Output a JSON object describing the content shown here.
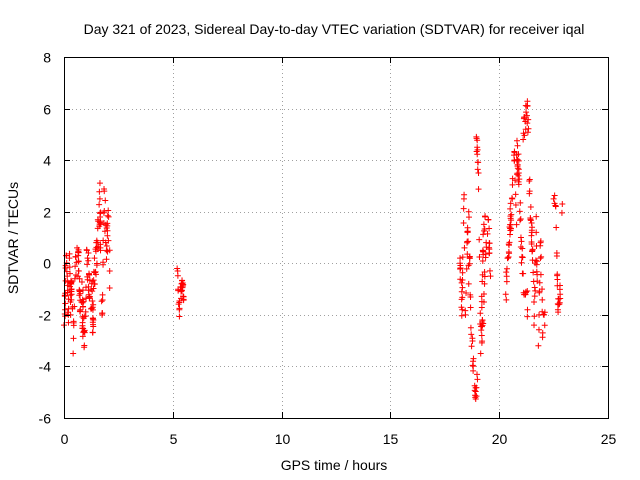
{
  "chart_data": {
    "type": "scatter",
    "title": "Day 321 of 2023, Sidereal Day-to-day VTEC variation (SDTVAR) for receiver iqal",
    "xlabel": "GPS time / hours",
    "ylabel": "SDTVAR / TECUs",
    "xlim": [
      0,
      25
    ],
    "ylim": [
      -6,
      8
    ],
    "xticks": [
      "0",
      "5",
      "10",
      "15",
      "20",
      "25"
    ],
    "yticks": [
      "-6",
      "-4",
      "-2",
      "0",
      "2",
      "4",
      "6",
      "8"
    ],
    "grid": true,
    "marker": "+",
    "color": "#ff0000",
    "clusters": [
      {
        "range": [
          0.0,
          0.35
        ],
        "trace": [
          [
            0.0,
            -2.4
          ],
          [
            0.05,
            -1.8
          ],
          [
            0.1,
            0.3
          ],
          [
            0.15,
            -0.5
          ],
          [
            0.2,
            -2.0
          ],
          [
            0.25,
            0.2
          ],
          [
            0.3,
            -1.5
          ],
          [
            0.35,
            -1.0
          ]
        ],
        "spread": 0.7,
        "count": 35
      },
      {
        "range": [
          0.35,
          0.75
        ],
        "trace": [
          [
            0.35,
            -1.2
          ],
          [
            0.42,
            -3.5
          ],
          [
            0.5,
            -0.6
          ],
          [
            0.6,
            0.6
          ],
          [
            0.68,
            -0.3
          ],
          [
            0.75,
            -1.8
          ]
        ],
        "spread": 0.7,
        "count": 30
      },
      {
        "range": [
          0.8,
          1.4
        ],
        "trace": [
          [
            0.8,
            -1.5
          ],
          [
            0.95,
            -2.6
          ],
          [
            1.05,
            0.5
          ],
          [
            1.15,
            -0.4
          ],
          [
            1.25,
            -1.0
          ],
          [
            1.35,
            -2.2
          ],
          [
            1.4,
            0.2
          ]
        ],
        "spread": 1.0,
        "count": 60
      },
      {
        "range": [
          1.4,
          2.1
        ],
        "trace": [
          [
            1.4,
            -0.8
          ],
          [
            1.55,
            0.8
          ],
          [
            1.65,
            2.5
          ],
          [
            1.75,
            -2.0
          ],
          [
            1.85,
            2.8
          ],
          [
            1.95,
            0.5
          ],
          [
            2.05,
            1.8
          ],
          [
            2.1,
            -0.3
          ]
        ],
        "spread": 0.9,
        "count": 60
      },
      {
        "range": [
          5.2,
          5.5
        ],
        "trace": [
          [
            5.2,
            -0.2
          ],
          [
            5.3,
            -1.8
          ],
          [
            5.4,
            -0.8
          ],
          [
            5.5,
            -1.3
          ]
        ],
        "spread": 0.35,
        "count": 25
      },
      {
        "range": [
          18.2,
          18.6
        ],
        "trace": [
          [
            18.2,
            0.0
          ],
          [
            18.3,
            -1.8
          ],
          [
            18.38,
            2.5
          ],
          [
            18.45,
            -2.0
          ],
          [
            18.55,
            1.2
          ],
          [
            18.6,
            -0.8
          ]
        ],
        "spread": 0.6,
        "count": 30
      },
      {
        "range": [
          18.6,
          19.0
        ],
        "trace": [
          [
            18.6,
            2.0
          ],
          [
            18.7,
            -2.5
          ],
          [
            18.8,
            -3.8
          ],
          [
            18.9,
            -5.2
          ],
          [
            19.0,
            -4.5
          ]
        ],
        "spread": 0.5,
        "count": 25
      },
      {
        "range": [
          18.95,
          19.35
        ],
        "trace": [
          [
            18.95,
            4.9
          ],
          [
            19.05,
            3.5
          ],
          [
            19.15,
            -3.5
          ],
          [
            19.25,
            0.5
          ],
          [
            19.35,
            1.8
          ]
        ],
        "spread": 0.6,
        "count": 30
      },
      {
        "range": [
          19.2,
          19.6
        ],
        "trace": [
          [
            19.2,
            -2.8
          ],
          [
            19.3,
            -1.5
          ],
          [
            19.4,
            0.8
          ],
          [
            19.5,
            1.7
          ],
          [
            19.6,
            -0.5
          ]
        ],
        "spread": 0.5,
        "count": 25
      },
      {
        "range": [
          20.3,
          20.8
        ],
        "trace": [
          [
            20.3,
            -1.2
          ],
          [
            20.4,
            0.2
          ],
          [
            20.5,
            1.5
          ],
          [
            20.6,
            2.5
          ],
          [
            20.7,
            4.0
          ],
          [
            20.8,
            1.5
          ]
        ],
        "spread": 0.6,
        "count": 35
      },
      {
        "range": [
          20.8,
          21.3
        ],
        "trace": [
          [
            20.8,
            4.2
          ],
          [
            20.9,
            3.5
          ],
          [
            21.0,
            1.0
          ],
          [
            21.1,
            -0.4
          ],
          [
            21.2,
            -1.2
          ],
          [
            21.3,
            -1.8
          ]
        ],
        "spread": 0.7,
        "count": 35
      },
      {
        "range": [
          21.1,
          21.6
        ],
        "trace": [
          [
            21.1,
            4.8
          ],
          [
            21.2,
            5.5
          ],
          [
            21.3,
            6.1
          ],
          [
            21.4,
            2.8
          ],
          [
            21.5,
            1.2
          ],
          [
            21.6,
            -1.5
          ]
        ],
        "spread": 0.6,
        "count": 35
      },
      {
        "range": [
          21.6,
          22.1
        ],
        "trace": [
          [
            21.6,
            -2.4
          ],
          [
            21.7,
            1.2
          ],
          [
            21.8,
            -3.2
          ],
          [
            21.9,
            0.8
          ],
          [
            22.0,
            -2.7
          ],
          [
            22.1,
            -1.9
          ]
        ],
        "spread": 0.7,
        "count": 30
      },
      {
        "range": [
          22.5,
          22.9
        ],
        "trace": [
          [
            22.5,
            2.5
          ],
          [
            22.6,
            2.2
          ],
          [
            22.65,
            0.4
          ],
          [
            22.7,
            -1.8
          ],
          [
            22.8,
            -1.2
          ],
          [
            22.9,
            2.3
          ]
        ],
        "spread": 0.4,
        "count": 20
      }
    ]
  }
}
